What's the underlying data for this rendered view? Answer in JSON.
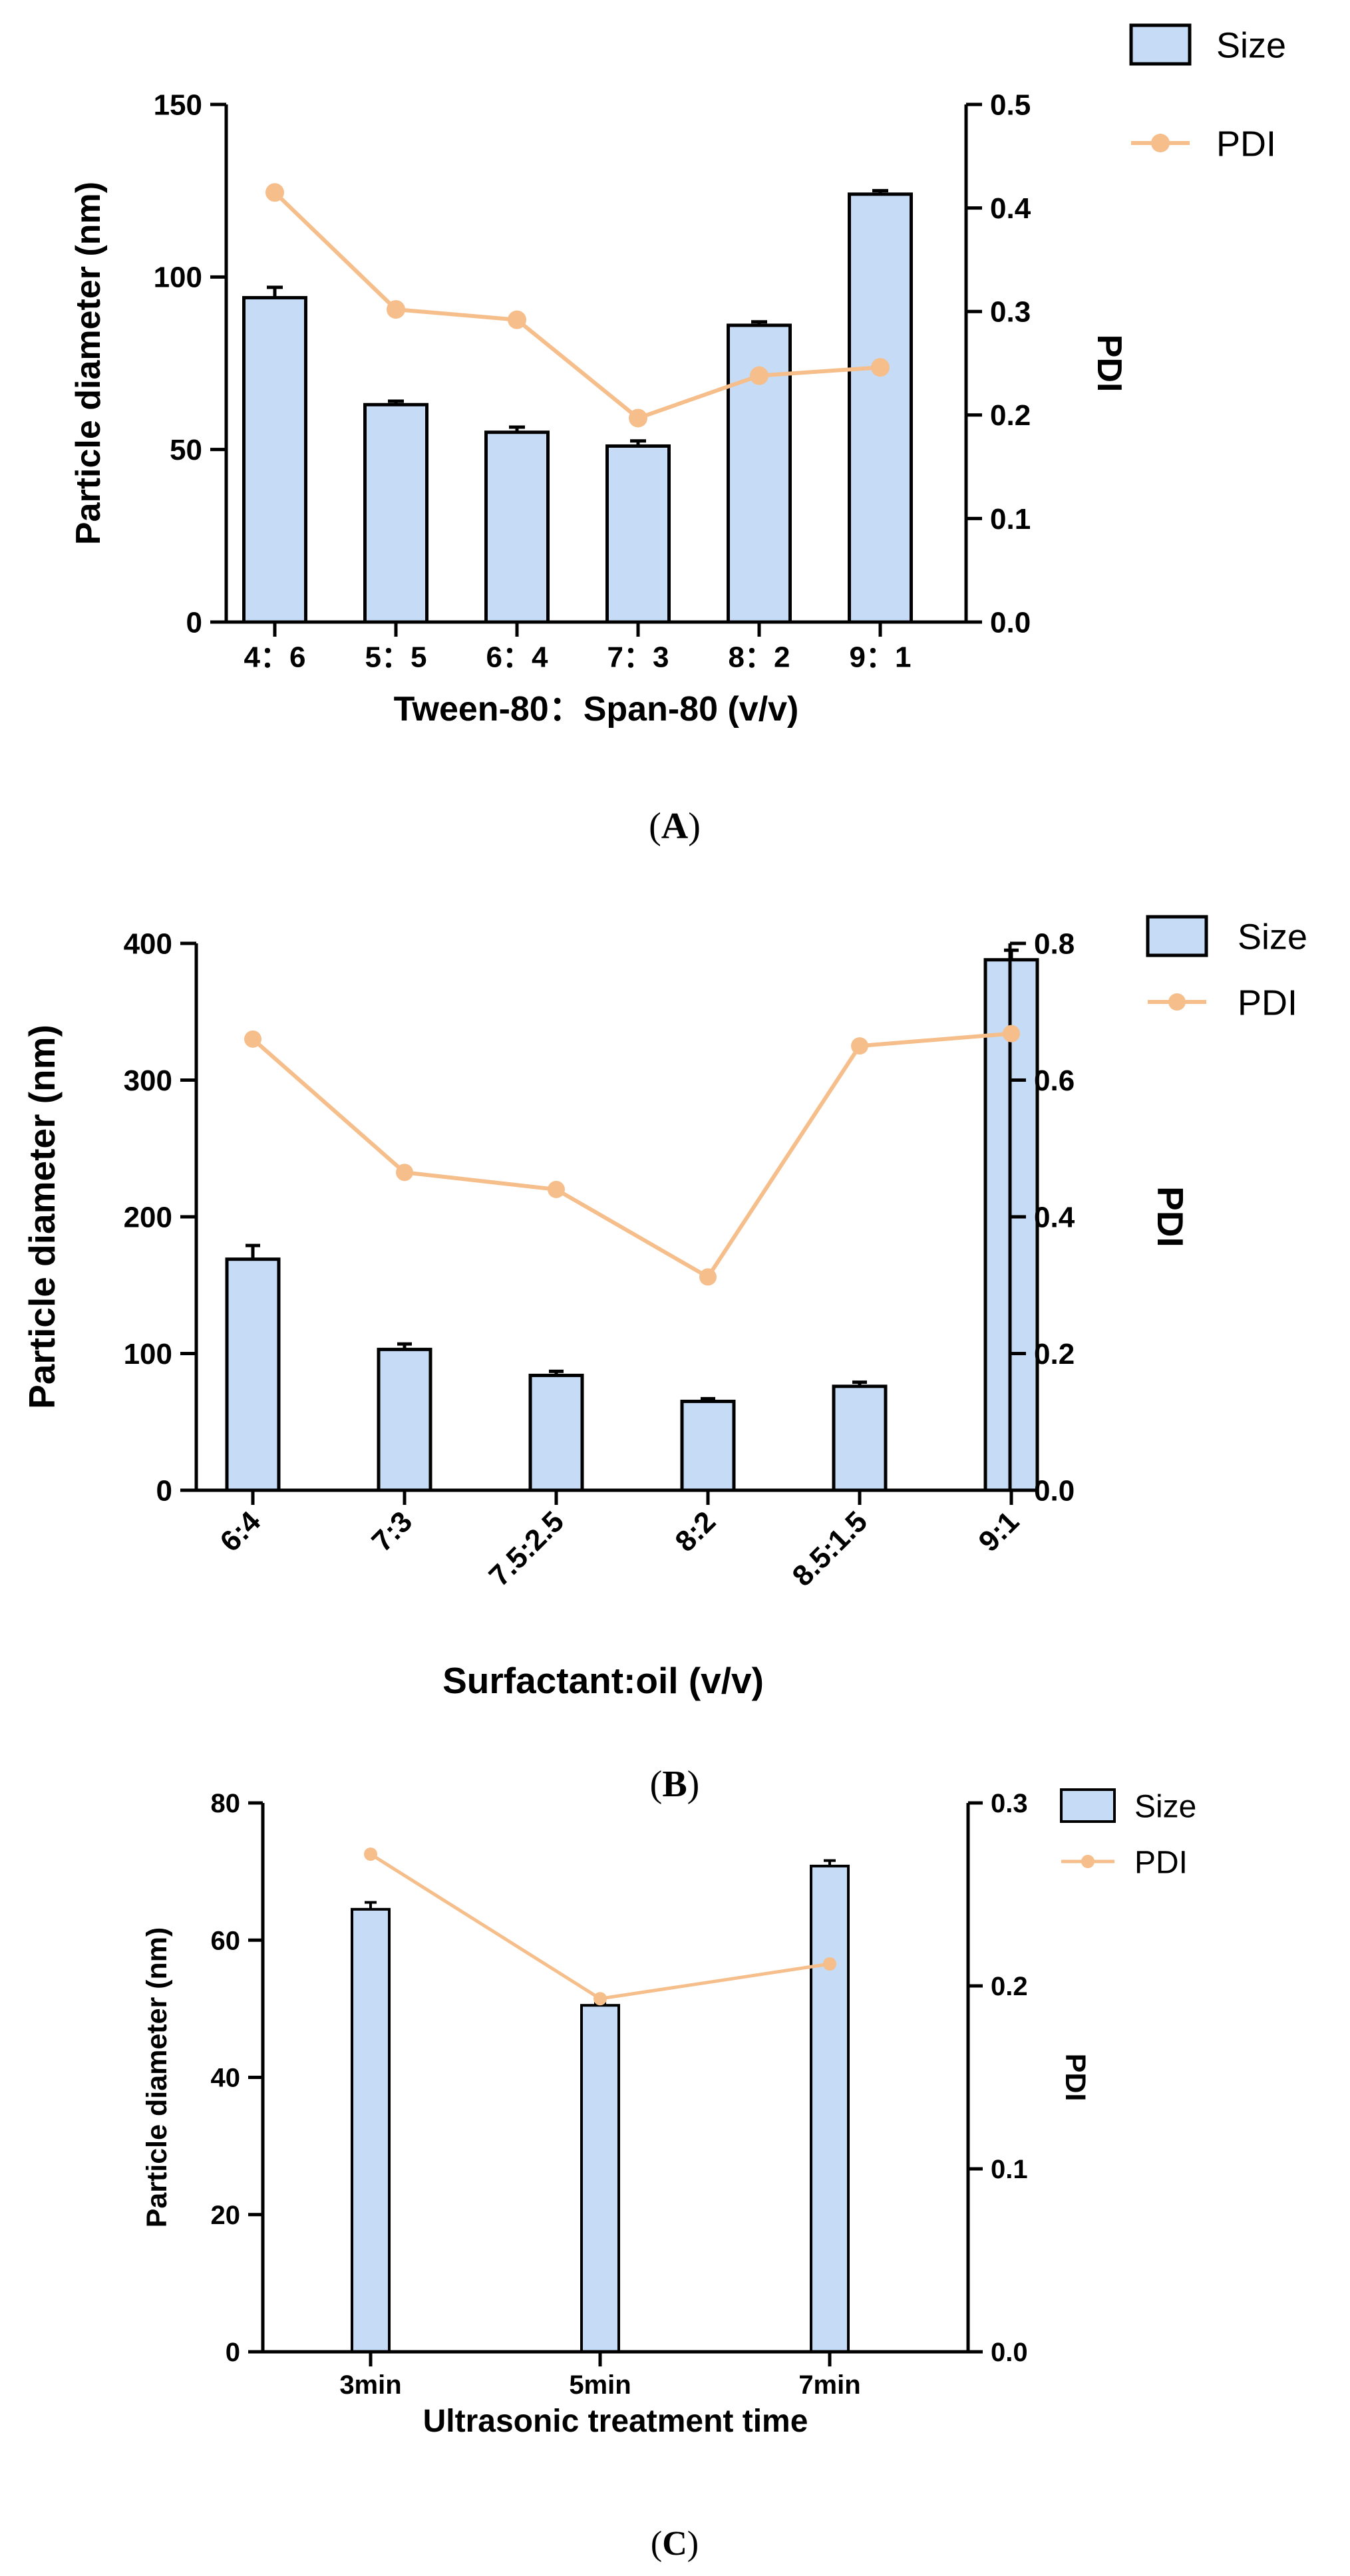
{
  "colors": {
    "bar_fill": "#c6dbf5",
    "bar_stroke": "#000000",
    "line": "#f5be8a"
  },
  "chart_data": [
    {
      "panel": "A",
      "type": "bar+line",
      "caption_letter": "A",
      "categories": [
        "4：6",
        "5：5",
        "6：4",
        "7：3",
        "8：2",
        "9：1"
      ],
      "series": [
        {
          "name": "Size",
          "type": "bar",
          "axis": "left",
          "values": [
            94,
            63,
            55,
            51,
            86,
            124
          ],
          "errors": [
            3,
            1,
            1.5,
            1.5,
            1,
            1
          ]
        },
        {
          "name": "PDI",
          "type": "line",
          "axis": "right",
          "values": [
            0.415,
            0.302,
            0.292,
            0.197,
            0.238,
            0.246
          ]
        }
      ],
      "xlabel": "Tween-80：Span-80 (v/v)",
      "ylabel": "Particle diameter (nm)",
      "y2label": "PDI",
      "ylim": [
        0,
        150
      ],
      "yticks": [
        0,
        50,
        100,
        150
      ],
      "ytick_labels": [
        "0",
        "50",
        "100",
        "150"
      ],
      "y2lim": [
        0,
        0.5
      ],
      "y2ticks": [
        0,
        0.1,
        0.2,
        0.3,
        0.4,
        0.5
      ],
      "y2tick_labels": [
        "0.0",
        "0.1",
        "0.2",
        "0.3",
        "0.4",
        "0.5"
      ],
      "legend": [
        "Size",
        "PDI"
      ],
      "legend_position": "top-right"
    },
    {
      "panel": "B",
      "type": "bar+line",
      "caption_letter": "B",
      "categories": [
        "6:4",
        "7:3",
        "7.5:2.5",
        "8:2",
        "8.5:1.5",
        "9:1"
      ],
      "series": [
        {
          "name": "Size",
          "type": "bar",
          "axis": "left",
          "values": [
            169,
            103,
            84,
            65,
            76,
            388
          ],
          "errors": [
            10,
            4,
            3,
            2,
            3,
            7
          ]
        },
        {
          "name": "PDI",
          "type": "line",
          "axis": "right",
          "values": [
            0.66,
            0.465,
            0.44,
            0.312,
            0.65,
            0.668
          ]
        }
      ],
      "xlabel": "Surfactant:oil (v/v)",
      "ylabel": "Particle diameter (nm)",
      "y2label": "PDI",
      "ylim": [
        0,
        400
      ],
      "yticks": [
        0,
        100,
        200,
        300,
        400
      ],
      "ytick_labels": [
        "0",
        "100",
        "200",
        "300",
        "400"
      ],
      "y2lim": [
        0,
        0.8
      ],
      "y2ticks": [
        0,
        0.2,
        0.4,
        0.6,
        0.8
      ],
      "y2tick_labels": [
        "0.0",
        "0.2",
        "0.4",
        "0.6",
        "0.8"
      ],
      "legend": [
        "Size",
        "PDI"
      ],
      "legend_position": "top-right"
    },
    {
      "panel": "C",
      "type": "bar+line",
      "caption_letter": "C",
      "categories": [
        "3min",
        "5min",
        "7min"
      ],
      "series": [
        {
          "name": "Size",
          "type": "bar",
          "axis": "left",
          "values": [
            64.5,
            50.5,
            70.8
          ],
          "errors": [
            1,
            0.3,
            0.8
          ]
        },
        {
          "name": "PDI",
          "type": "line",
          "axis": "right",
          "values": [
            0.272,
            0.193,
            0.212
          ]
        }
      ],
      "xlabel": "Ultrasonic treatment time",
      "ylabel": "Particle diameter (nm)",
      "y2label": "PDI",
      "ylim": [
        0,
        80
      ],
      "yticks": [
        0,
        20,
        40,
        60,
        80
      ],
      "ytick_labels": [
        "0",
        "20",
        "40",
        "60",
        "80"
      ],
      "y2lim": [
        0,
        0.3
      ],
      "y2ticks": [
        0,
        0.1,
        0.2,
        0.3
      ],
      "y2tick_labels": [
        "0.0",
        "0.1",
        "0.2",
        "0.3"
      ],
      "legend": [
        "Size",
        "PDI"
      ],
      "legend_position": "top-right"
    }
  ]
}
